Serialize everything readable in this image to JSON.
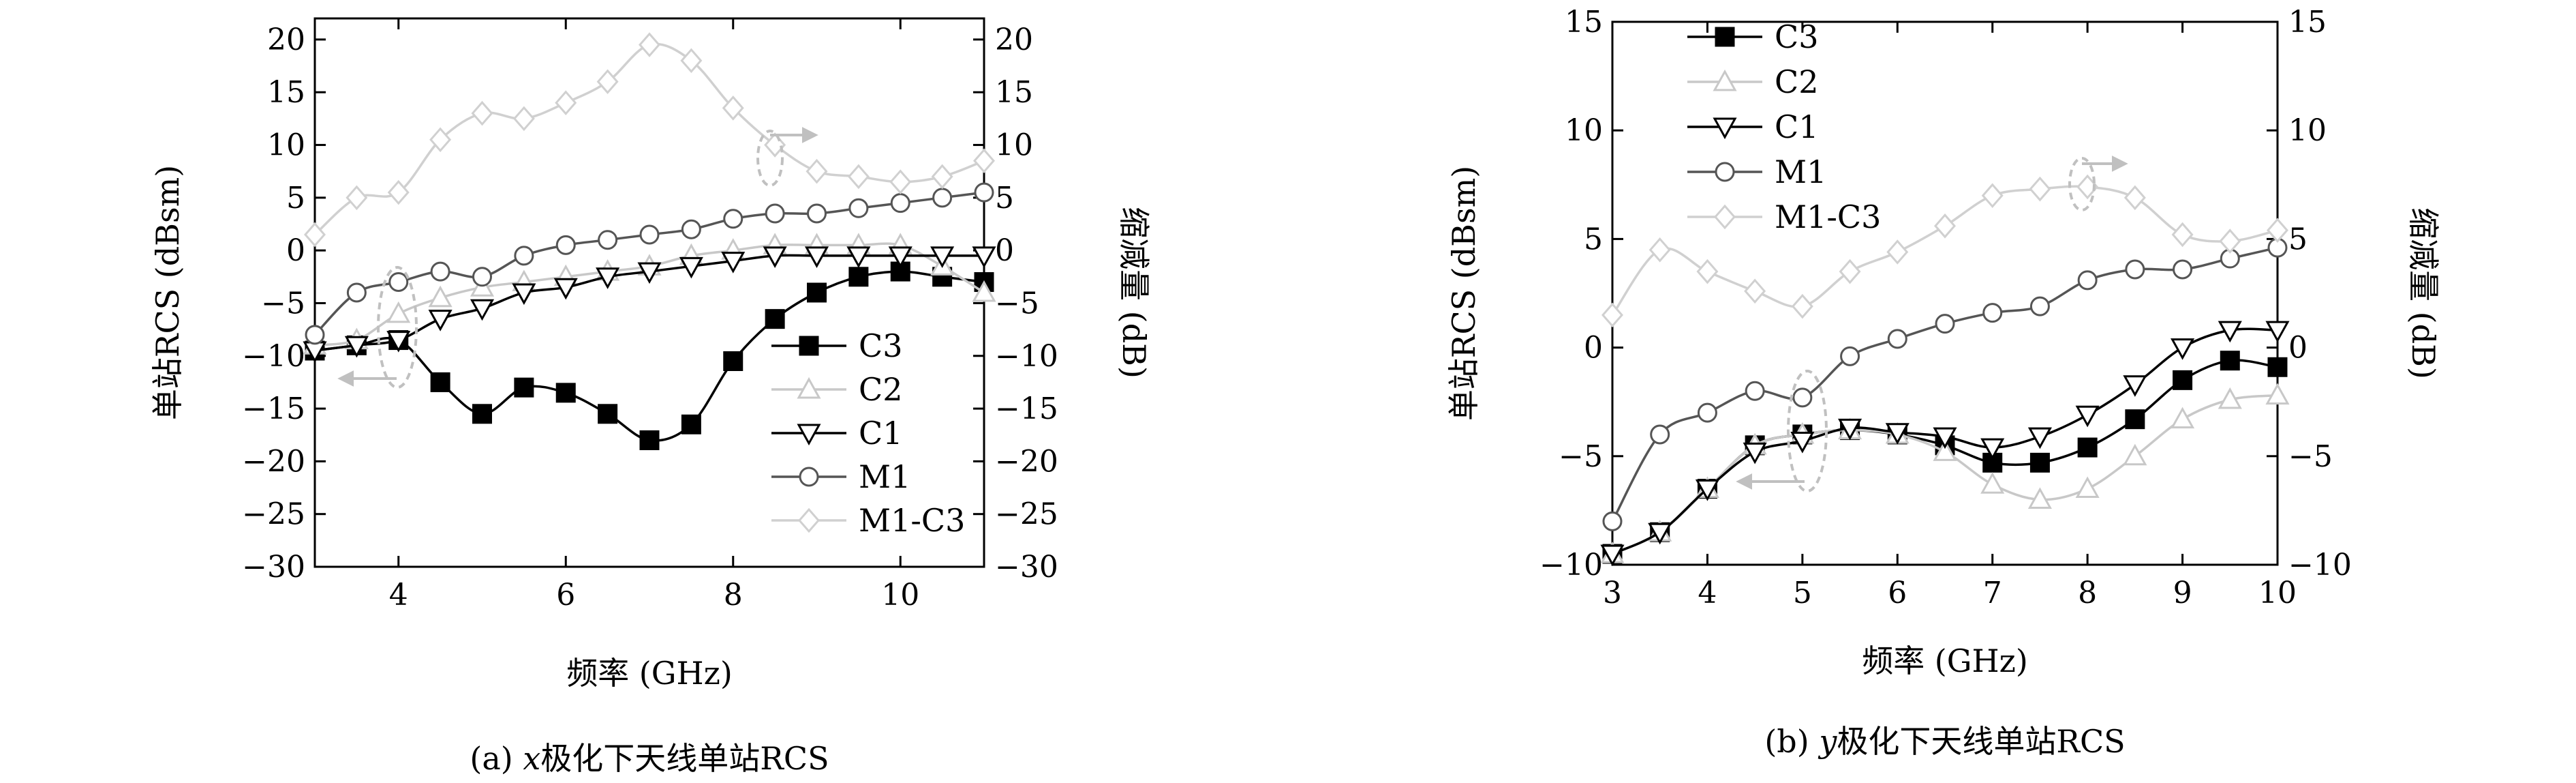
{
  "chart_data": [
    {
      "type": "line",
      "caption": "(a) x极化下天线单站RCS",
      "caption_var": "x",
      "caption_rest": "极化下天线单站RCS",
      "caption_prefix": "(a) ",
      "xlabel": "频率 (GHz)",
      "ylabel": "单站RCS (dBsm)",
      "y2label": "缩减量 (dB)",
      "xlim": [
        3,
        11
      ],
      "ylim": [
        -30,
        22
      ],
      "y2lim": [
        -30,
        22
      ],
      "xticks": [
        "4",
        "6",
        "8",
        "10"
      ],
      "yticks": [
        "20",
        "15",
        "10",
        "5",
        "0",
        "−5",
        "−10",
        "−15",
        "−20",
        "−25",
        "−30"
      ],
      "y2ticks": [
        "20",
        "15",
        "10",
        "5",
        "0",
        "−5",
        "−10",
        "−15",
        "−20",
        "−25",
        "−30"
      ],
      "legend_position": "lower-right",
      "series": [
        {
          "name": "C3",
          "color": "#000000",
          "marker": "square-filled",
          "x": [
            3,
            3.5,
            4,
            4.5,
            5,
            5.5,
            6,
            6.5,
            7,
            7.5,
            8,
            8.5,
            9,
            9.5,
            10,
            10.5,
            11
          ],
          "y": [
            -9.5,
            -9,
            -8.5,
            -12.5,
            -15.5,
            -13,
            -13.5,
            -15.5,
            -18,
            -16.5,
            -10.5,
            -6.5,
            -4,
            -2.5,
            -2,
            -2.5,
            -3
          ]
        },
        {
          "name": "C2",
          "color": "#c8c8c8",
          "marker": "triangle-up",
          "x": [
            3,
            3.5,
            4,
            4.5,
            5,
            5.5,
            6,
            6.5,
            7,
            7.5,
            8,
            8.5,
            9,
            9.5,
            10,
            10.5,
            11
          ],
          "y": [
            -9,
            -8.5,
            -6,
            -4.5,
            -3.5,
            -3,
            -2.5,
            -2,
            -1.5,
            -0.5,
            0,
            0.5,
            0.5,
            0.5,
            0.5,
            -1.5,
            -4
          ]
        },
        {
          "name": "C1",
          "color": "#000000",
          "marker": "triangle-down",
          "x": [
            3,
            3.5,
            4,
            4.5,
            5,
            5.5,
            6,
            6.5,
            7,
            7.5,
            8,
            8.5,
            9,
            9.5,
            10,
            10.5,
            11
          ],
          "y": [
            -9.5,
            -9,
            -8.5,
            -6.5,
            -5.5,
            -4,
            -3.5,
            -2.5,
            -2,
            -1.5,
            -1,
            -0.5,
            -0.5,
            -0.5,
            -0.5,
            -0.5,
            -0.5
          ]
        },
        {
          "name": "M1",
          "color": "#555555",
          "marker": "circle",
          "x": [
            3,
            3.5,
            4,
            4.5,
            5,
            5.5,
            6,
            6.5,
            7,
            7.5,
            8,
            8.5,
            9,
            9.5,
            10,
            10.5,
            11
          ],
          "y": [
            -8,
            -4,
            -3,
            -2,
            -2.5,
            -0.5,
            0.5,
            1,
            1.5,
            2,
            3,
            3.5,
            3.5,
            4,
            4.5,
            5,
            5.5
          ]
        },
        {
          "name": "M1-C3",
          "color": "#d0d0d0",
          "marker": "diamond",
          "x": [
            3,
            3.5,
            4,
            4.5,
            5,
            5.5,
            6,
            6.5,
            7,
            7.5,
            8,
            8.5,
            9,
            9.5,
            10,
            10.5,
            11
          ],
          "y": [
            1.5,
            5,
            5.5,
            10.5,
            13,
            12.5,
            14,
            16,
            19.5,
            18,
            13.5,
            10,
            7.5,
            7,
            6.5,
            7,
            8.5
          ]
        }
      ]
    },
    {
      "type": "line",
      "caption": "(b) y极化下天线单站RCS",
      "caption_var": "y",
      "caption_rest": "极化下天线单站RCS",
      "caption_prefix": "(b) ",
      "xlabel": "频率 (GHz)",
      "ylabel": "单站RCS (dBsm)",
      "y2label": "缩减量 (dB)",
      "xlim": [
        3,
        10
      ],
      "ylim": [
        -10,
        15
      ],
      "y2lim": [
        -10,
        15
      ],
      "xticks": [
        "3",
        "4",
        "5",
        "6",
        "7",
        "8",
        "9",
        "10"
      ],
      "yticks": [
        "15",
        "10",
        "5",
        "0",
        "−5",
        "−10"
      ],
      "y2ticks": [
        "15",
        "10",
        "5",
        "0",
        "−5",
        "−10"
      ],
      "legend_position": "top-left",
      "series": [
        {
          "name": "C3",
          "color": "#000000",
          "marker": "square-filled",
          "x": [
            3,
            3.5,
            4,
            4.5,
            5,
            5.5,
            6,
            6.5,
            7,
            7.5,
            8,
            8.5,
            9,
            9.5,
            10
          ],
          "y": [
            -9.5,
            -8.5,
            -6.5,
            -4.5,
            -4,
            -3.8,
            -4,
            -4.5,
            -5.3,
            -5.3,
            -4.6,
            -3.3,
            -1.5,
            -0.6,
            -0.9
          ]
        },
        {
          "name": "C2",
          "color": "#c8c8c8",
          "marker": "triangle-up",
          "x": [
            3,
            3.5,
            4,
            4.5,
            5,
            5.5,
            6,
            6.5,
            7,
            7.5,
            8,
            8.5,
            9,
            9.5,
            10
          ],
          "y": [
            -9.5,
            -8.5,
            -6.5,
            -4.5,
            -4,
            -3.8,
            -4,
            -4.8,
            -6.3,
            -7,
            -6.5,
            -5,
            -3.3,
            -2.4,
            -2.2
          ]
        },
        {
          "name": "C1",
          "color": "#000000",
          "marker": "triangle-down",
          "x": [
            3,
            3.5,
            4,
            4.5,
            5,
            5.5,
            6,
            6.5,
            7,
            7.5,
            8,
            8.5,
            9,
            9.5,
            10
          ],
          "y": [
            -9.5,
            -8.5,
            -6.5,
            -4.8,
            -4.3,
            -3.7,
            -3.9,
            -4.1,
            -4.6,
            -4.1,
            -3.1,
            -1.7,
            0,
            0.8,
            0.8
          ]
        },
        {
          "name": "M1",
          "color": "#555555",
          "marker": "circle",
          "x": [
            3,
            3.5,
            4,
            4.5,
            5,
            5.5,
            6,
            6.5,
            7,
            7.5,
            8,
            8.5,
            9,
            9.5,
            10
          ],
          "y": [
            -8,
            -4,
            -3,
            -2,
            -2.3,
            -0.4,
            0.4,
            1.1,
            1.6,
            1.9,
            3.1,
            3.6,
            3.6,
            4.1,
            4.6
          ]
        },
        {
          "name": "M1-C3",
          "color": "#d0d0d0",
          "marker": "diamond",
          "x": [
            3,
            3.5,
            4,
            4.5,
            5,
            5.5,
            6,
            6.5,
            7,
            7.5,
            8,
            8.5,
            9,
            9.5,
            10
          ],
          "y": [
            1.5,
            4.5,
            3.5,
            2.6,
            1.9,
            3.5,
            4.4,
            5.6,
            7,
            7.3,
            7.4,
            6.9,
            5.2,
            4.9,
            5.4
          ]
        }
      ]
    }
  ]
}
